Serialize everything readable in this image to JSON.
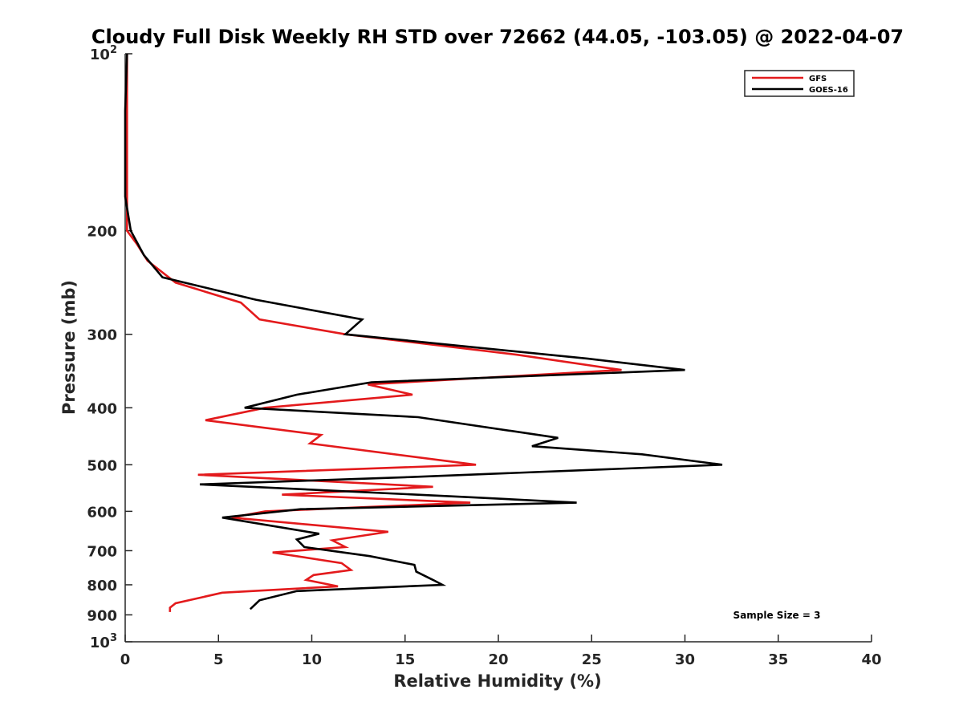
{
  "chart_data": {
    "type": "line",
    "title": "Cloudy Full Disk Weekly RH STD over 72662 (44.05, -103.05) @ 2022-04-07",
    "xlabel": "Relative Humidity (%)",
    "ylabel": "Pressure (mb)",
    "xlim": [
      0,
      40
    ],
    "ylim": [
      100,
      1000
    ],
    "yscale": "log",
    "y_reversed": true,
    "grid": false,
    "legend_position": "top-right",
    "x_ticks": [
      0,
      5,
      10,
      15,
      20,
      25,
      30,
      35,
      40
    ],
    "x_tick_labels": [
      "0",
      "5",
      "10",
      "15",
      "20",
      "25",
      "30",
      "35",
      "40"
    ],
    "y_ticks": [
      {
        "value": 100,
        "label": "10",
        "sup": "2"
      },
      {
        "value": 200,
        "label": "200",
        "sup": ""
      },
      {
        "value": 300,
        "label": "300",
        "sup": ""
      },
      {
        "value": 400,
        "label": "400",
        "sup": ""
      },
      {
        "value": 500,
        "label": "500",
        "sup": ""
      },
      {
        "value": 600,
        "label": "600",
        "sup": ""
      },
      {
        "value": 700,
        "label": "700",
        "sup": ""
      },
      {
        "value": 800,
        "label": "800",
        "sup": ""
      },
      {
        "value": 900,
        "label": "900",
        "sup": ""
      },
      {
        "value": 1000,
        "label": "10",
        "sup": "3"
      }
    ],
    "annotation": "Sample Size = 3",
    "series": [
      {
        "name": "GFS",
        "color": "#e31a1c",
        "points": [
          [
            0.1,
            100
          ],
          [
            0.1,
            125
          ],
          [
            0.1,
            150
          ],
          [
            0.1,
            175
          ],
          [
            0.1,
            200
          ],
          [
            0.6,
            210
          ],
          [
            1.2,
            225
          ],
          [
            2.7,
            245
          ],
          [
            6.2,
            265
          ],
          [
            7.2,
            283
          ],
          [
            11.8,
            300
          ],
          [
            21.0,
            325
          ],
          [
            26.6,
            345
          ],
          [
            13.0,
            365
          ],
          [
            15.4,
            380
          ],
          [
            7.5,
            400
          ],
          [
            4.3,
            420
          ],
          [
            10.5,
            445
          ],
          [
            9.9,
            460
          ],
          [
            18.8,
            500
          ],
          [
            3.9,
            520
          ],
          [
            16.5,
            545
          ],
          [
            8.4,
            562
          ],
          [
            18.5,
            580
          ],
          [
            7.5,
            600
          ],
          [
            5.7,
            615
          ],
          [
            14.1,
            650
          ],
          [
            11.1,
            672
          ],
          [
            11.8,
            690
          ],
          [
            7.9,
            705
          ],
          [
            11.6,
            735
          ],
          [
            12.1,
            755
          ],
          [
            10.1,
            770
          ],
          [
            9.7,
            785
          ],
          [
            11.4,
            805
          ],
          [
            5.2,
            825
          ],
          [
            2.7,
            860
          ],
          [
            2.4,
            875
          ],
          [
            2.4,
            890
          ]
        ]
      },
      {
        "name": "GOES-16",
        "color": "#000000",
        "points": [
          [
            0.1,
            100
          ],
          [
            0.0,
            125
          ],
          [
            0.0,
            150
          ],
          [
            0.0,
            175
          ],
          [
            0.3,
            200
          ],
          [
            1.0,
            220
          ],
          [
            2.0,
            240
          ],
          [
            7.0,
            262
          ],
          [
            12.7,
            283
          ],
          [
            11.8,
            300
          ],
          [
            24.8,
            330
          ],
          [
            30.0,
            345
          ],
          [
            13.2,
            362
          ],
          [
            9.2,
            380
          ],
          [
            6.4,
            400
          ],
          [
            15.7,
            415
          ],
          [
            23.2,
            450
          ],
          [
            21.8,
            465
          ],
          [
            27.7,
            480
          ],
          [
            32.0,
            500
          ],
          [
            15.0,
            525
          ],
          [
            4.0,
            540
          ],
          [
            18.6,
            568
          ],
          [
            24.2,
            580
          ],
          [
            9.4,
            595
          ],
          [
            5.2,
            615
          ],
          [
            10.4,
            655
          ],
          [
            9.2,
            670
          ],
          [
            9.6,
            690
          ],
          [
            13.1,
            715
          ],
          [
            15.5,
            740
          ],
          [
            15.6,
            760
          ],
          [
            16.5,
            785
          ],
          [
            17.0,
            800
          ],
          [
            9.2,
            820
          ],
          [
            7.2,
            850
          ],
          [
            6.7,
            880
          ]
        ]
      }
    ]
  }
}
